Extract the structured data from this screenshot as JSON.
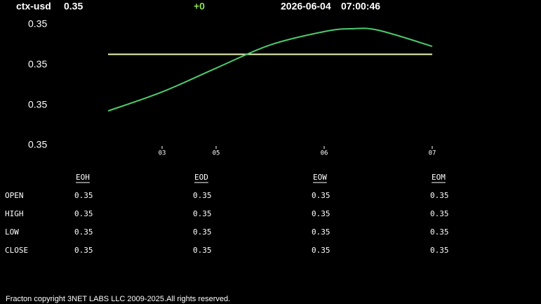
{
  "header": {
    "symbol": "ctx-usd",
    "price": "0.35",
    "change": "+0",
    "date": "2026-06-04",
    "time": "07:00:46"
  },
  "chart_data": {
    "type": "line",
    "x": [
      0,
      1,
      2,
      3,
      4,
      4.5,
      5,
      6
    ],
    "series": [
      {
        "color": "#4ccb6e",
        "values": [
          0.350427,
          0.350663,
          0.350959,
          0.351247,
          0.351413,
          0.351448,
          0.35143,
          0.35123
        ]
      }
    ],
    "reference": {
      "value": 0.35113,
      "color": "#eaf5b8"
    },
    "xlim": [
      0,
      6
    ],
    "xticks": [
      {
        "value": 1,
        "label": "03"
      },
      {
        "value": 2,
        "label": "05"
      },
      {
        "value": 4,
        "label": "06"
      },
      {
        "value": 6,
        "label": "07"
      }
    ],
    "ylim": [
      0.35,
      0.3515
    ],
    "yticks": [
      {
        "value": 0.3515,
        "label": "0.35"
      },
      {
        "value": 0.351,
        "label": "0.35"
      },
      {
        "value": 0.3505,
        "label": "0.35"
      },
      {
        "value": 0.35,
        "label": "0.35"
      }
    ]
  },
  "table": {
    "columns": [
      "EOH",
      "EOD",
      "EOW",
      "EOM"
    ],
    "rows": [
      [
        "OPEN",
        "0.35",
        "0.35",
        "0.35",
        "0.35"
      ],
      [
        "HIGH",
        "0.35",
        "0.35",
        "0.35",
        "0.35"
      ],
      [
        "LOW",
        "0.35",
        "0.35",
        "0.35",
        "0.35"
      ],
      [
        "CLOSE",
        "0.35",
        "0.35",
        "0.35",
        "0.35"
      ]
    ]
  },
  "footer": "Fracton copyright 3NET LABS LLC 2009-2025.All rights reserved."
}
